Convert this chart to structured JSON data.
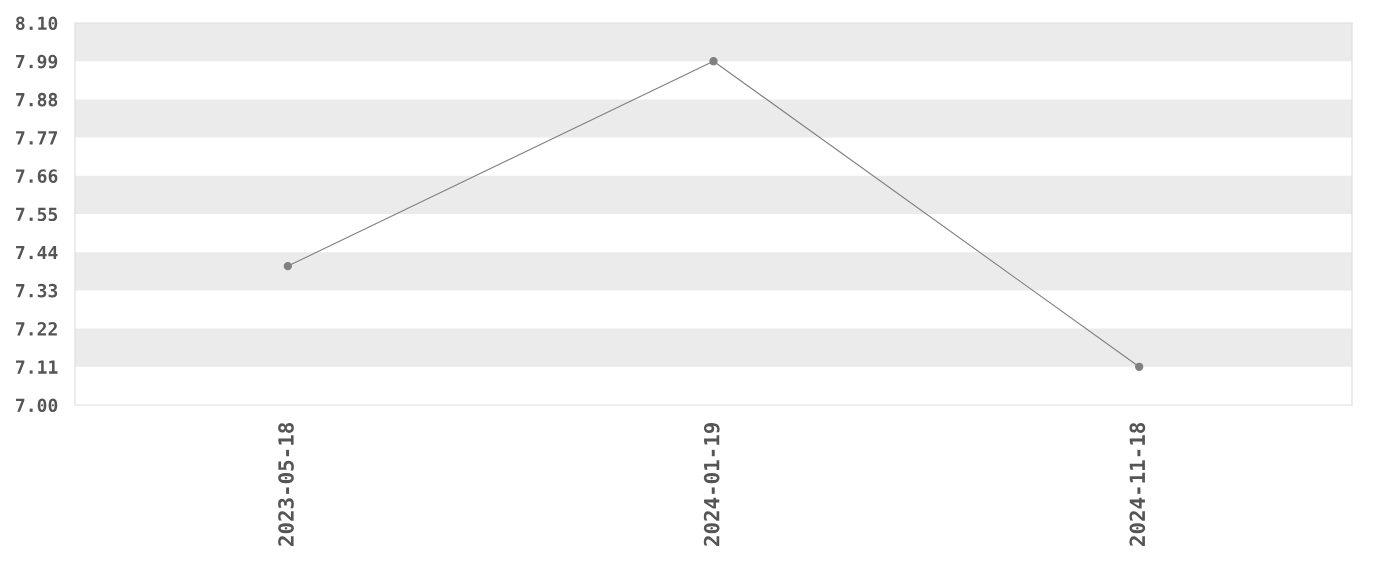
{
  "chart_data": {
    "type": "line",
    "categories": [
      "2023-05-18",
      "2024-01-19",
      "2024-11-18"
    ],
    "series": [
      {
        "color": "#808080",
        "values": [
          7.4,
          7.99,
          7.11
        ]
      }
    ],
    "ylim": [
      7.0,
      8.1
    ],
    "yticks": [
      {
        "value": 7.0,
        "label": "7.00"
      },
      7.11,
      7.22,
      7.33,
      7.44,
      7.55,
      7.66,
      7.77,
      7.88,
      7.99,
      {
        "value": 8.1,
        "label": "8.10"
      }
    ],
    "bands": [
      {
        "axis": "y",
        "from": 7.11,
        "to": 7.22,
        "color": "#ebebeb"
      },
      {
        "axis": "y",
        "from": 7.33,
        "to": 7.44,
        "color": "#ebebeb"
      },
      {
        "axis": "y",
        "from": 7.55,
        "to": 7.66,
        "color": "#ebebeb"
      },
      {
        "axis": "y",
        "from": 7.77,
        "to": 7.88,
        "color": "#ebebeb"
      },
      {
        "axis": "y",
        "from": 7.99,
        "to": 8.1,
        "color": "#ebebeb"
      }
    ],
    "marker": "circle",
    "line_style": "solid",
    "grid": false,
    "legend": false
  }
}
